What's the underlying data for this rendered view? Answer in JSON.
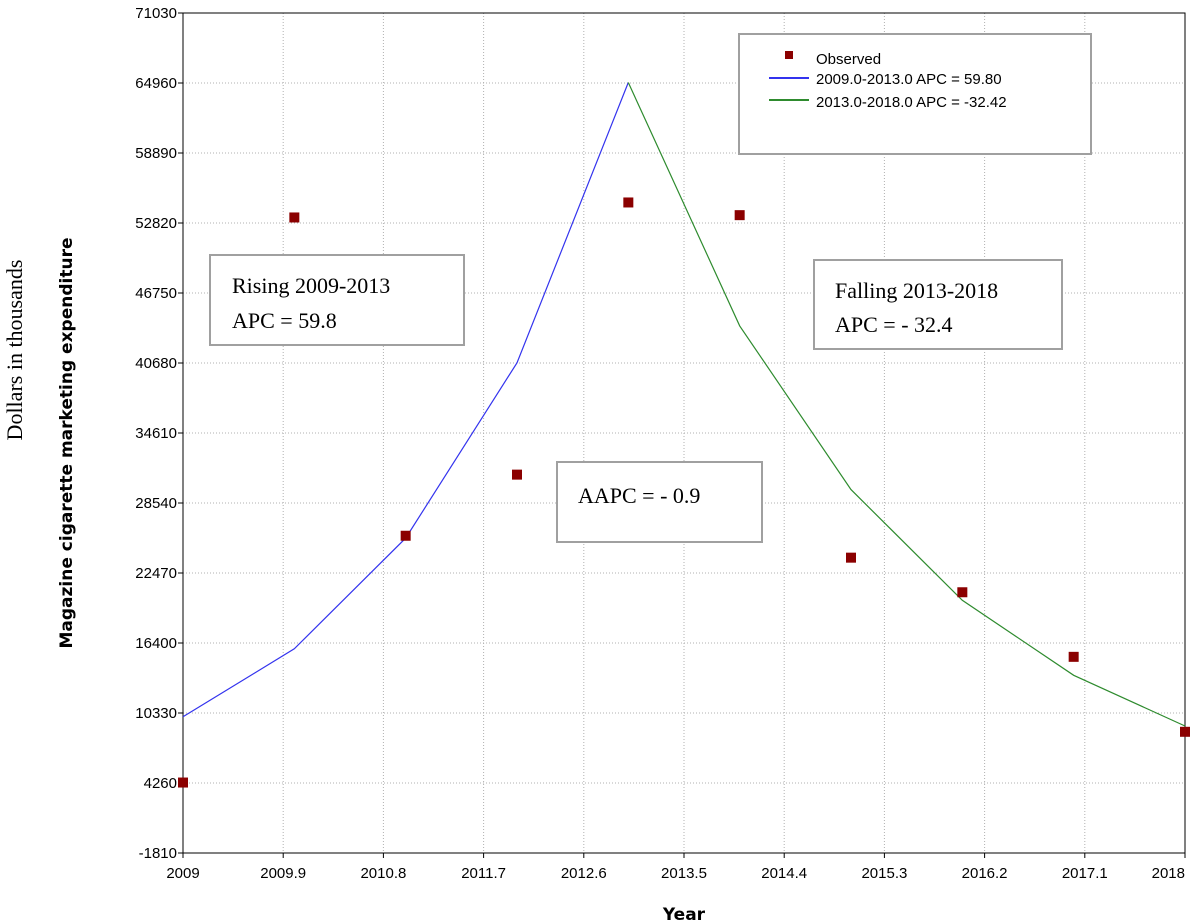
{
  "chart_data": {
    "type": "line",
    "xlabel": "Year",
    "ylabel": "Magazine cigarette marketing expenditure",
    "outer_ylabel": "Dollars in thousands",
    "xlim": [
      2009,
      2018
    ],
    "ylim": [
      -1810,
      71030
    ],
    "xticks": [
      "2009",
      "2009.9",
      "2010.8",
      "2011.7",
      "2012.6",
      "2013.5",
      "2014.4",
      "2015.3",
      "2016.2",
      "2017.1",
      "2018"
    ],
    "yticks": [
      "71030",
      "64960",
      "58890",
      "52820",
      "46750",
      "40680",
      "34610",
      "28540",
      "22470",
      "16400",
      "10330",
      "4260",
      "-1810"
    ],
    "grid": true,
    "legend_position": "top-right",
    "series": [
      {
        "name": "Observed",
        "kind": "scatter",
        "color": "#8b0000",
        "points": [
          [
            2009,
            4300
          ],
          [
            2010,
            53300
          ],
          [
            2011,
            25700
          ],
          [
            2012,
            31000
          ],
          [
            2013,
            54600
          ],
          [
            2014,
            53500
          ],
          [
            2015,
            23800
          ],
          [
            2016,
            20800
          ],
          [
            2017,
            15200
          ],
          [
            2018,
            8700
          ]
        ]
      },
      {
        "name": "2009.0-2013.0 APC =  59.80",
        "kind": "line",
        "color": "#3333ee",
        "points": [
          [
            2009,
            10000
          ],
          [
            2010,
            15900
          ],
          [
            2011,
            25500
          ],
          [
            2012,
            40700
          ],
          [
            2013,
            65000
          ]
        ]
      },
      {
        "name": "2013.0-2018.0 APC =  -32.42",
        "kind": "line",
        "color": "#2e8b2e",
        "points": [
          [
            2013,
            65000
          ],
          [
            2014,
            43900
          ],
          [
            2015,
            29700
          ],
          [
            2016,
            20100
          ],
          [
            2017,
            13600
          ],
          [
            2018,
            9200
          ]
        ]
      }
    ],
    "annotations": [
      {
        "lines": [
          "Rising 2009-2013",
          "APC = 59.8"
        ]
      },
      {
        "lines": [
          "Falling 2013-2018",
          "APC = - 32.4"
        ]
      },
      {
        "lines": [
          "AAPC = - 0.9"
        ]
      }
    ]
  }
}
